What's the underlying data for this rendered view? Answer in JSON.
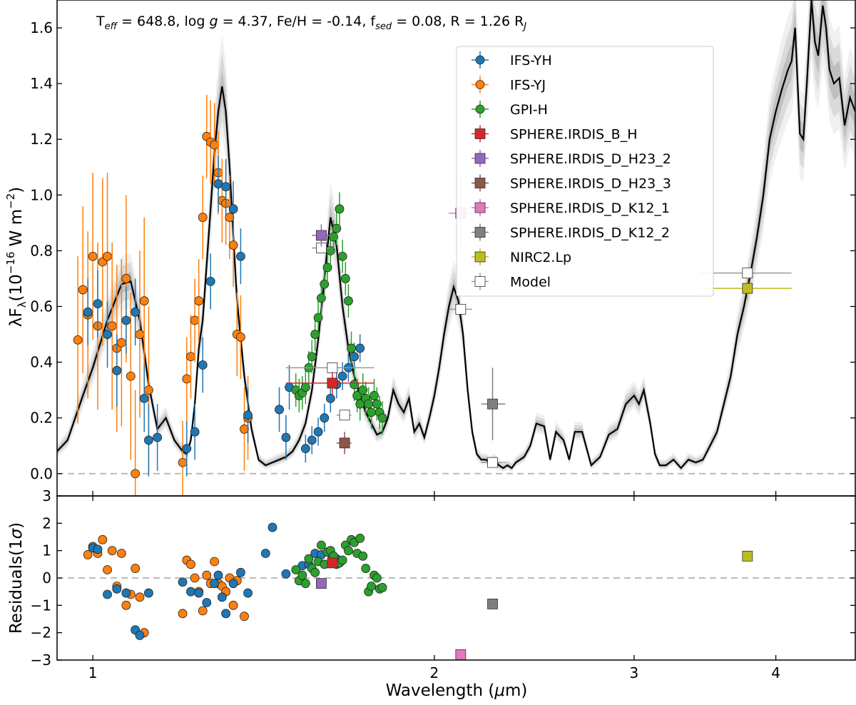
{
  "chart_data": [
    {
      "type": "scatter",
      "title": "T_eff = 648.8, log g = 4.37, Fe/H = -0.14, f_sed = 0.08, R = 1.26 R_J",
      "title_parts": {
        "t": "T",
        "t_sub": "eff",
        "t_val": " = 648.8, log ",
        "g": "g",
        "g_val": " = 4.37, Fe/H = -0.14, f",
        "f_sub": "sed",
        "f_val": " = 0.08, R = 1.26 R",
        "r_sub": "J"
      },
      "ylabel": {
        "pre": "λF",
        "sub": "λ",
        "mid": "(10",
        "sup": "−16",
        "unit": " W m",
        "sup2": "−2",
        "post": ")"
      },
      "x_scale": "log",
      "xlim": [
        0.93,
        4.7
      ],
      "ylim": [
        -0.08,
        1.7
      ],
      "yticks": [
        "0.0",
        "0.2",
        "0.4",
        "0.6",
        "0.8",
        "1.0",
        "1.2",
        "1.4",
        "1.6"
      ],
      "zero_line": true,
      "legend_position": "upper-right",
      "legend": [
        "IFS-YH",
        "IFS-YJ",
        "GPI-H",
        "SPHERE.IRDIS_B_H",
        "SPHERE.IRDIS_D_H23_2",
        "SPHERE.IRDIS_D_H23_3",
        "SPHERE.IRDIS_D_K12_1",
        "SPHERE.IRDIS_D_K12_2",
        "NIRC2.Lp",
        "Model"
      ],
      "colors": {
        "ifs_yh": "#1f77b4",
        "ifs_yj": "#ff7f0e",
        "gpi_h": "#2ca02c",
        "b_h": "#d62728",
        "h23_2": "#9467bd",
        "h23_3": "#8c564b",
        "k12_1": "#e377c2",
        "k12_2": "#7f7f7f",
        "nirc2": "#bcbd22"
      },
      "model_spectrum": {
        "x": [
          0.93,
          0.95,
          0.98,
          1.0,
          1.03,
          1.06,
          1.08,
          1.1,
          1.12,
          1.14,
          1.16,
          1.18,
          1.2,
          1.21,
          1.22,
          1.23,
          1.24,
          1.25,
          1.26,
          1.27,
          1.28,
          1.29,
          1.3,
          1.31,
          1.32,
          1.33,
          1.34,
          1.36,
          1.38,
          1.4,
          1.42,
          1.44,
          1.46,
          1.48,
          1.5,
          1.52,
          1.54,
          1.56,
          1.58,
          1.6,
          1.62,
          1.64,
          1.66,
          1.68,
          1.7,
          1.72,
          1.74,
          1.76,
          1.78,
          1.8,
          1.82,
          1.84,
          1.86,
          1.88,
          1.9,
          1.92,
          1.94,
          1.96,
          1.98,
          2.0,
          2.02,
          2.04,
          2.06,
          2.08,
          2.1,
          2.12,
          2.14,
          2.16,
          2.18,
          2.2,
          2.22,
          2.24,
          2.26,
          2.28,
          2.3,
          2.32,
          2.34,
          2.36,
          2.38,
          2.4,
          2.43,
          2.46,
          2.5,
          2.53,
          2.56,
          2.6,
          2.63,
          2.66,
          2.7,
          2.75,
          2.8,
          2.85,
          2.9,
          2.95,
          3.0,
          3.03,
          3.06,
          3.1,
          3.13,
          3.16,
          3.2,
          3.25,
          3.3,
          3.35,
          3.4,
          3.45,
          3.5,
          3.55,
          3.6,
          3.65,
          3.7,
          3.75,
          3.8,
          3.85,
          3.9,
          3.95,
          4.0,
          4.05,
          4.1,
          4.13,
          4.16,
          4.2,
          4.23,
          4.26,
          4.3,
          4.33,
          4.36,
          4.4,
          4.43,
          4.46,
          4.5,
          4.55,
          4.6,
          4.65,
          4.7
        ],
        "y": [
          0.08,
          0.12,
          0.28,
          0.38,
          0.55,
          0.68,
          0.69,
          0.55,
          0.32,
          0.16,
          0.2,
          0.12,
          0.08,
          0.07,
          0.12,
          0.25,
          0.45,
          0.55,
          0.75,
          0.95,
          1.15,
          1.3,
          1.39,
          1.3,
          1.1,
          0.85,
          0.62,
          0.35,
          0.16,
          0.05,
          0.03,
          0.04,
          0.05,
          0.06,
          0.08,
          0.12,
          0.18,
          0.3,
          0.48,
          0.7,
          0.92,
          0.82,
          0.6,
          0.45,
          0.35,
          0.28,
          0.22,
          0.18,
          0.14,
          0.15,
          0.2,
          0.3,
          0.25,
          0.22,
          0.27,
          0.15,
          0.18,
          0.13,
          0.2,
          0.28,
          0.38,
          0.5,
          0.6,
          0.67,
          0.62,
          0.5,
          0.3,
          0.15,
          0.07,
          0.05,
          0.05,
          0.04,
          0.05,
          0.03,
          0.02,
          0.03,
          0.02,
          0.04,
          0.05,
          0.06,
          0.1,
          0.18,
          0.17,
          0.05,
          0.15,
          0.12,
          0.05,
          0.15,
          0.15,
          0.03,
          0.06,
          0.14,
          0.16,
          0.25,
          0.28,
          0.25,
          0.3,
          0.18,
          0.07,
          0.03,
          0.03,
          0.05,
          0.02,
          0.05,
          0.04,
          0.05,
          0.1,
          0.15,
          0.25,
          0.35,
          0.5,
          0.6,
          0.72,
          0.85,
          1.0,
          1.2,
          1.3,
          1.38,
          1.45,
          1.48,
          1.6,
          1.22,
          1.2,
          1.4,
          1.7,
          1.55,
          1.5,
          1.68,
          1.6,
          1.45,
          1.4,
          1.42,
          1.25,
          1.35,
          1.3
        ]
      },
      "zero_line_label": "",
      "ifs_yh": {
        "x": [
          0.99,
          1.01,
          1.03,
          1.05,
          1.07,
          1.09,
          1.11,
          1.12,
          1.14,
          1.21,
          1.23,
          1.25,
          1.27,
          1.29,
          1.31,
          1.33,
          1.35,
          1.37,
          1.46,
          1.48,
          1.49,
          1.54,
          1.56,
          1.58,
          1.6,
          1.62,
          1.64,
          1.66,
          1.68,
          1.7,
          1.72
        ],
        "y": [
          0.58,
          0.61,
          0.5,
          0.37,
          0.55,
          0.58,
          0.27,
          0.12,
          0.13,
          0.09,
          0.15,
          0.39,
          0.69,
          1.04,
          1.03,
          0.95,
          0.78,
          0.21,
          0.23,
          0.13,
          0.31,
          0.09,
          0.12,
          0.15,
          0.2,
          0.27,
          0.32,
          0.35,
          0.38,
          0.42,
          0.45
        ],
        "err": [
          0.12,
          0.12,
          0.12,
          0.13,
          0.12,
          0.12,
          0.12,
          0.13,
          0.12,
          0.1,
          0.1,
          0.1,
          0.1,
          0.1,
          0.1,
          0.1,
          0.1,
          0.1,
          0.08,
          0.08,
          0.08,
          0.05,
          0.05,
          0.05,
          0.05,
          0.05,
          0.05,
          0.05,
          0.05,
          0.05,
          0.05
        ]
      },
      "ifs_yj": {
        "x": [
          0.97,
          0.98,
          0.99,
          1.0,
          1.01,
          1.02,
          1.03,
          1.04,
          1.05,
          1.06,
          1.07,
          1.08,
          1.09,
          1.1,
          1.11,
          1.12,
          1.2,
          1.21,
          1.22,
          1.23,
          1.24,
          1.25,
          1.26,
          1.27,
          1.28,
          1.29,
          1.3,
          1.31,
          1.32,
          1.33,
          1.34,
          1.35,
          1.36,
          1.37
        ],
        "y": [
          0.48,
          0.66,
          0.57,
          0.78,
          0.53,
          0.76,
          0.78,
          0.53,
          0.45,
          0.47,
          0.7,
          0.35,
          0.0,
          0.5,
          0.62,
          0.3,
          0.04,
          0.34,
          0.42,
          0.55,
          0.62,
          0.92,
          1.21,
          1.19,
          1.18,
          1.08,
          0.98,
          0.97,
          0.92,
          0.82,
          0.5,
          0.49,
          0.16,
          0.2
        ],
        "err": [
          0.3,
          0.3,
          0.3,
          0.3,
          0.3,
          0.3,
          0.3,
          0.3,
          0.3,
          0.3,
          0.3,
          0.3,
          0.3,
          0.3,
          0.3,
          0.3,
          0.15,
          0.15,
          0.15,
          0.15,
          0.15,
          0.15,
          0.15,
          0.15,
          0.15,
          0.15,
          0.15,
          0.15,
          0.15,
          0.15,
          0.15,
          0.15,
          0.15,
          0.15
        ]
      },
      "gpi_h": {
        "x": [
          1.51,
          1.52,
          1.53,
          1.54,
          1.55,
          1.56,
          1.57,
          1.58,
          1.59,
          1.6,
          1.61,
          1.62,
          1.63,
          1.64,
          1.65,
          1.66,
          1.67,
          1.68,
          1.69,
          1.7,
          1.71,
          1.72,
          1.73,
          1.74,
          1.75,
          1.76,
          1.77,
          1.78,
          1.79,
          1.8
        ],
        "y": [
          0.3,
          0.28,
          0.29,
          0.31,
          0.38,
          0.42,
          0.5,
          0.56,
          0.63,
          0.68,
          0.74,
          0.8,
          0.85,
          0.88,
          0.95,
          0.78,
          0.7,
          0.62,
          0.45,
          0.32,
          0.28,
          0.25,
          0.3,
          0.27,
          0.25,
          0.22,
          0.28,
          0.25,
          0.22,
          0.2
        ],
        "err": [
          0.06,
          0.06,
          0.06,
          0.06,
          0.06,
          0.06,
          0.06,
          0.06,
          0.06,
          0.06,
          0.06,
          0.06,
          0.06,
          0.06,
          0.06,
          0.06,
          0.06,
          0.06,
          0.06,
          0.06,
          0.06,
          0.06,
          0.06,
          0.06,
          0.06,
          0.06,
          0.06,
          0.06,
          0.06,
          0.06
        ]
      },
      "photometry": [
        {
          "name": "SPHERE.IRDIS_B_H",
          "x": 1.626,
          "y": 0.325,
          "xlo": 1.48,
          "xhi": 1.77
        },
        {
          "name": "SPHERE.IRDIS_D_H23_2",
          "x": 1.59,
          "y": 0.855,
          "xlo": 1.56,
          "xhi": 1.62
        },
        {
          "name": "SPHERE.IRDIS_D_H23_3",
          "x": 1.667,
          "y": 0.11,
          "xlo": 1.64,
          "xhi": 1.69
        },
        {
          "name": "SPHERE.IRDIS_D_K12_1",
          "x": 2.11,
          "y": 0.935,
          "xlo": 2.06,
          "xhi": 2.16
        },
        {
          "name": "SPHERE.IRDIS_D_K12_2",
          "x": 2.251,
          "y": 0.25,
          "xlo": 2.2,
          "xhi": 2.31
        },
        {
          "name": "NIRC2.Lp",
          "x": 3.776,
          "y": 0.665,
          "xlo": 3.43,
          "xhi": 4.13
        }
      ],
      "model_points": [
        {
          "x": 1.626,
          "y": 0.38,
          "xlo": 1.48,
          "xhi": 1.77
        },
        {
          "x": 1.59,
          "y": 0.81,
          "xlo": 1.56,
          "xhi": 1.62
        },
        {
          "x": 1.667,
          "y": 0.21,
          "xlo": 1.64,
          "xhi": 1.69
        },
        {
          "x": 2.11,
          "y": 0.59,
          "xlo": 2.06,
          "xhi": 2.16
        },
        {
          "x": 2.251,
          "y": 0.04,
          "xlo": 2.2,
          "xhi": 2.31
        },
        {
          "x": 3.776,
          "y": 0.72,
          "xlo": 3.43,
          "xhi": 4.13
        }
      ]
    },
    {
      "type": "scatter",
      "xlabel": "Wavelength (μm)",
      "xlabel_parts": {
        "pre": "Wavelength (",
        "mu": "μ",
        "post": "m)"
      },
      "ylabel": "Residuals(1σ)",
      "ylabel_parts": {
        "pre": "Residuals(1",
        "sigma": "σ",
        "post": ")"
      },
      "x_scale": "log",
      "xlim": [
        0.93,
        4.7
      ],
      "ylim": [
        -3,
        3
      ],
      "yticks": [
        "3",
        "2",
        "1",
        "0",
        "−1",
        "−2",
        "−3"
      ],
      "xticks": [
        "1",
        "2",
        "3",
        "4"
      ],
      "ifs_yh": {
        "x": [
          1.0,
          1.01,
          1.03,
          1.05,
          1.07,
          1.09,
          1.1,
          1.12,
          1.2,
          1.22,
          1.24,
          1.26,
          1.28,
          1.29,
          1.3,
          1.31,
          1.33,
          1.35,
          1.37,
          1.42,
          1.44,
          1.48,
          1.53,
          1.55,
          1.57,
          1.59,
          1.62,
          1.64
        ],
        "y": [
          1.1,
          1.05,
          -0.6,
          -0.4,
          -0.55,
          -1.9,
          -2.1,
          -0.55,
          -0.15,
          -0.5,
          -0.55,
          -0.9,
          -0.2,
          0.1,
          -0.7,
          -1.3,
          -0.2,
          0.2,
          -0.55,
          0.9,
          1.85,
          0.15,
          0.45,
          0.5,
          0.9,
          0.85,
          0.9,
          0.7
        ],
        "err": []
      },
      "ifs_yj": {
        "x": [
          0.99,
          1.0,
          1.01,
          1.02,
          1.03,
          1.04,
          1.05,
          1.06,
          1.07,
          1.08,
          1.09,
          1.1,
          1.11,
          1.2,
          1.21,
          1.22,
          1.23,
          1.24,
          1.25,
          1.26,
          1.27,
          1.28,
          1.29,
          1.3,
          1.31,
          1.32,
          1.33,
          1.34,
          1.36
        ],
        "y": [
          0.85,
          1.15,
          0.9,
          1.4,
          0.3,
          1.0,
          -0.3,
          0.9,
          -1.0,
          -0.6,
          0.35,
          -0.7,
          -2.0,
          -1.3,
          0.65,
          0.5,
          0.0,
          -0.5,
          -1.2,
          0.1,
          -0.2,
          0.6,
          -0.2,
          -0.3,
          -0.5,
          0.0,
          -1.0,
          -0.1,
          -1.4
        ]
      },
      "gpi_h": {
        "x": [
          1.51,
          1.52,
          1.53,
          1.54,
          1.55,
          1.56,
          1.57,
          1.58,
          1.59,
          1.6,
          1.61,
          1.62,
          1.63,
          1.64,
          1.65,
          1.66,
          1.67,
          1.68,
          1.69,
          1.7,
          1.71,
          1.72,
          1.73,
          1.74,
          1.75,
          1.76,
          1.77,
          1.78,
          1.79,
          1.8
        ],
        "y": [
          0.3,
          -0.1,
          0.1,
          -0.2,
          0.7,
          0.35,
          0.2,
          0.6,
          1.2,
          0.5,
          0.95,
          1.0,
          0.8,
          0.5,
          0.55,
          0.65,
          1.2,
          1.0,
          1.4,
          1.3,
          0.9,
          1.45,
          0.8,
          0.35,
          -0.5,
          -0.3,
          0.1,
          0.0,
          -0.4,
          -0.35
        ]
      },
      "photometry": [
        {
          "name": "SPHERE.IRDIS_B_H",
          "x": 1.626,
          "y": 0.55
        },
        {
          "name": "SPHERE.IRDIS_D_H23_2",
          "x": 1.59,
          "y": -0.2
        },
        {
          "name": "SPHERE.IRDIS_D_K12_1",
          "x": 2.11,
          "y": -2.8
        },
        {
          "name": "SPHERE.IRDIS_D_K12_2",
          "x": 2.251,
          "y": -0.95
        },
        {
          "name": "NIRC2.Lp",
          "x": 3.776,
          "y": 0.8
        }
      ]
    }
  ]
}
